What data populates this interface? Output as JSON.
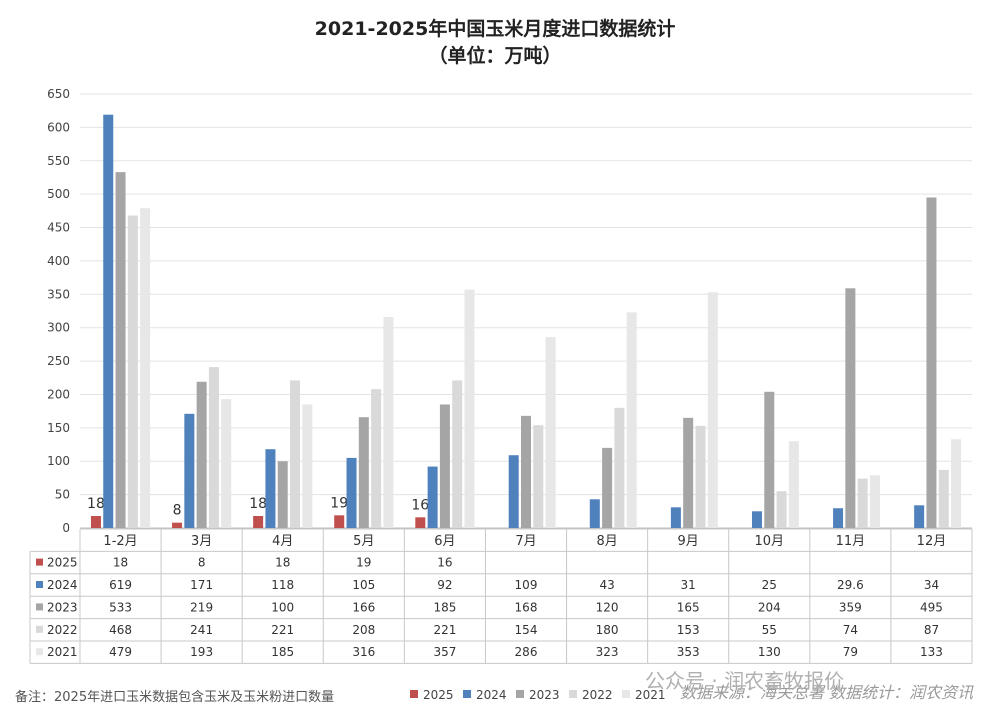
{
  "chart_data": {
    "type": "bar",
    "title": "2021-2025年中国玉米月度进口数据统计",
    "subtitle": "（单位：万吨）",
    "categories": [
      "1-2月",
      "3月",
      "4月",
      "5月",
      "6月",
      "7月",
      "8月",
      "9月",
      "10月",
      "11月",
      "12月"
    ],
    "series": [
      {
        "name": "2025",
        "color": "#c0504d",
        "values": [
          18,
          8,
          18,
          19,
          16,
          null,
          null,
          null,
          null,
          null,
          null
        ],
        "labels": [
          "18",
          "8",
          "18",
          "19",
          "16",
          "",
          "",
          "",
          "",
          "",
          ""
        ]
      },
      {
        "name": "2024",
        "color": "#4f81bd",
        "values": [
          619,
          171,
          118,
          105,
          92,
          109,
          43,
          31,
          25,
          29.6,
          34
        ],
        "labels": [
          "619",
          "171",
          "118",
          "105",
          "92",
          "109",
          "43",
          "31",
          "25",
          "29.6",
          "34"
        ]
      },
      {
        "name": "2023",
        "color": "#a5a5a5",
        "values": [
          533,
          219,
          100,
          166,
          185,
          168,
          120,
          165,
          204,
          359,
          495
        ],
        "labels": [
          "533",
          "219",
          "100",
          "166",
          "185",
          "168",
          "120",
          "165",
          "204",
          "359",
          "495"
        ]
      },
      {
        "name": "2022",
        "color": "#d9d9d9",
        "values": [
          468,
          241,
          221,
          208,
          221,
          154,
          180,
          153,
          55,
          74,
          87
        ],
        "labels": [
          "468",
          "241",
          "221",
          "208",
          "221",
          "154",
          "180",
          "153",
          "55",
          "74",
          "87"
        ]
      },
      {
        "name": "2021",
        "color": "#e7e7e7",
        "values": [
          479,
          193,
          185,
          316,
          357,
          286,
          323,
          353,
          130,
          79,
          133
        ],
        "labels": [
          "479",
          "193",
          "185",
          "316",
          "357",
          "286",
          "323",
          "353",
          "130",
          "79",
          "133"
        ]
      }
    ],
    "ylim": [
      0,
      650
    ],
    "yticks": [
      0,
      50,
      100,
      150,
      200,
      250,
      300,
      350,
      400,
      450,
      500,
      550,
      600,
      650
    ],
    "grid": true,
    "legend": "bottom"
  },
  "footer": {
    "note": "备注：2025年进口玉米数据包含玉米及玉米粉进口数量",
    "source": "数据来源：海关总署 数据统计：润农资讯",
    "watermark": "公众号 · 润农畜牧报价"
  }
}
